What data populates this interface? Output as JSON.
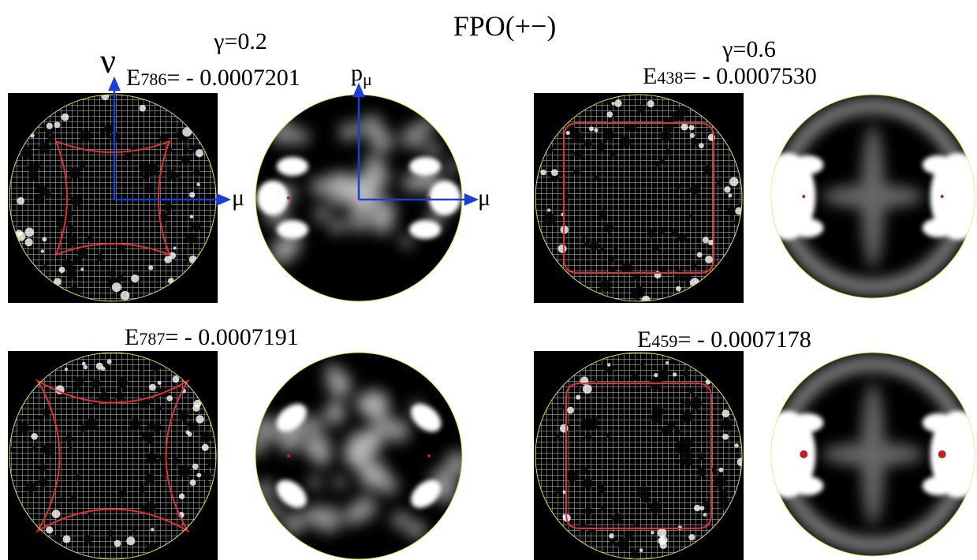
{
  "title": "FPO(+−)",
  "axes": {
    "nu": "ν",
    "mu": "μ",
    "p": "p",
    "p_sub": "μ"
  },
  "columns": [
    {
      "gamma": "γ=0.2",
      "states": [
        {
          "symbol": "E",
          "index": "786",
          "value": "= - 0.0007201"
        },
        {
          "symbol": "E",
          "index": "787",
          "value": "= - 0.0007191"
        }
      ]
    },
    {
      "gamma": "γ=0.6",
      "states": [
        {
          "symbol": "E",
          "index": "438",
          "value": "= - 0.0007530"
        },
        {
          "symbol": "E",
          "index": "459",
          "value": "= - 0.0007178"
        }
      ]
    }
  ]
}
